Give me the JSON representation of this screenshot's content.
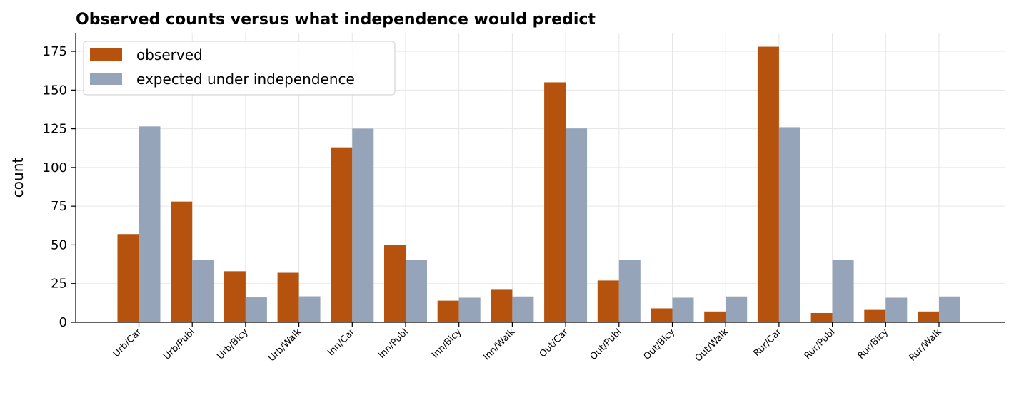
{
  "chart_data": {
    "type": "bar",
    "title": "Observed counts versus what independence would predict",
    "xlabel": "",
    "ylabel": "count",
    "ylim": [
      0,
      187
    ],
    "yticks": [
      0,
      25,
      50,
      75,
      100,
      125,
      150,
      175
    ],
    "grid": true,
    "legend_position": "top-left",
    "categories": [
      "Urb/Car",
      "Urb/Publ",
      "Urb/Bicy",
      "Urb/Walk",
      "Inn/Car",
      "Inn/Publ",
      "Inn/Bicy",
      "Inn/Walk",
      "Out/Car",
      "Out/Publ",
      "Out/Bicy",
      "Out/Walk",
      "Rur/Car",
      "Rur/Publ",
      "Rur/Bicy",
      "Rur/Walk"
    ],
    "series": [
      {
        "name": "observed",
        "color": "#b5520d",
        "values": [
          57,
          78,
          33,
          32,
          113,
          50,
          14,
          21,
          155,
          27,
          9,
          7,
          178,
          6,
          8,
          7
        ]
      },
      {
        "name": "expected under independence",
        "color": "#95a4b8",
        "values": [
          126.5,
          40.2,
          16.1,
          16.8,
          125.1,
          40.1,
          15.9,
          16.7,
          125.2,
          40.2,
          15.9,
          16.7,
          126.0,
          40.2,
          15.9,
          16.7
        ]
      }
    ]
  }
}
